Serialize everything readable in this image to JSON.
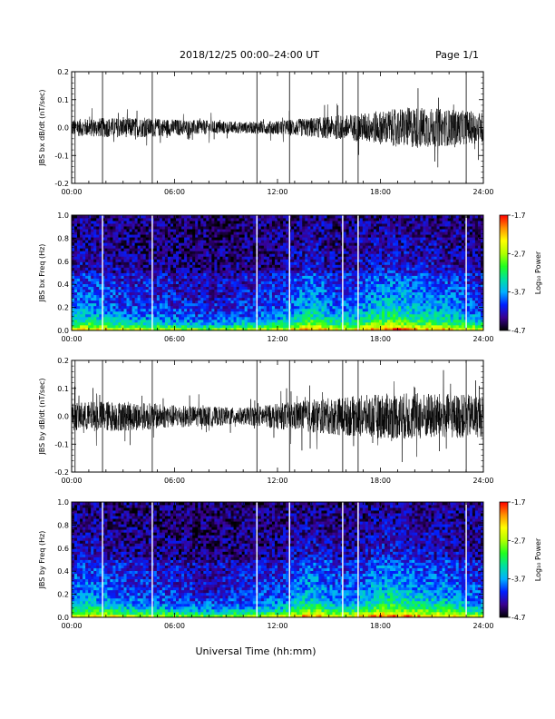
{
  "header": {
    "title": "2018/12/25  00:00–24:00 UT",
    "page": "Page 1/1"
  },
  "footer": {
    "xlabel": "Universal Time (hh:mm)"
  },
  "colorbar": {
    "label": "Log₁₀ Power",
    "ticks": [
      "-1.7",
      "-2.7",
      "-3.7",
      "-4.7"
    ],
    "range": [
      -4.7,
      -1.7
    ],
    "colors": [
      "#000000",
      "#3a0090",
      "#0020ff",
      "#00b0ff",
      "#00e0a0",
      "#20ff20",
      "#b0ff00",
      "#ffff00",
      "#ff9000",
      "#ff0000"
    ]
  },
  "x_ticks": [
    "00:00",
    "06:00",
    "12:00",
    "18:00",
    "24:00"
  ],
  "chart_data": [
    {
      "type": "line",
      "id": "bx-waveform",
      "ylabel": "JBS bx dB/dt (nT/sec)",
      "ylim": [
        -0.2,
        0.2
      ],
      "y_ticks": [
        "0.2",
        "0.1",
        "0.0",
        "-0.1",
        "-0.2"
      ],
      "x": "time 00:00–24:00 UT",
      "envelope_hours": [
        0,
        2,
        4,
        6,
        8,
        10,
        12,
        14,
        16,
        18,
        20,
        22,
        24
      ],
      "envelope_amplitude": [
        0.03,
        0.035,
        0.035,
        0.03,
        0.025,
        0.02,
        0.025,
        0.035,
        0.045,
        0.06,
        0.075,
        0.065,
        0.055
      ],
      "spike_hours": [
        0.2,
        1.8,
        4.7,
        10.8,
        12.7,
        15.8,
        16.7,
        23.0
      ]
    },
    {
      "type": "heatmap",
      "id": "bx-spectrogram",
      "ylabel": "JBS bx Freq (Hz)",
      "ylim": [
        0.0,
        1.0
      ],
      "y_ticks": [
        "1.0",
        "0.8",
        "0.6",
        "0.4",
        "0.2",
        "0.0"
      ],
      "value_range": [
        -4.7,
        -1.7
      ],
      "gap_hours": [
        1.8,
        4.7,
        10.8,
        12.7,
        15.8,
        16.7,
        23.0
      ]
    },
    {
      "type": "line",
      "id": "by-waveform",
      "ylabel": "JBS by dB/dt (nT/sec)",
      "ylim": [
        -0.2,
        0.2
      ],
      "y_ticks": [
        "0.2",
        "0.1",
        "0.0",
        "-0.1",
        "-0.2"
      ],
      "x": "time 00:00–24:00 UT",
      "envelope_hours": [
        0,
        2,
        4,
        6,
        8,
        10,
        12,
        14,
        16,
        18,
        20,
        22,
        24
      ],
      "envelope_amplitude": [
        0.05,
        0.055,
        0.05,
        0.04,
        0.035,
        0.03,
        0.045,
        0.06,
        0.07,
        0.08,
        0.085,
        0.08,
        0.075
      ],
      "spike_hours": [
        0.2,
        1.8,
        4.7,
        10.8,
        12.7,
        15.8,
        16.7,
        23.0
      ]
    },
    {
      "type": "heatmap",
      "id": "by-spectrogram",
      "ylabel": "JBS by Freq (Hz)",
      "ylim": [
        0.0,
        1.0
      ],
      "y_ticks": [
        "1.0",
        "0.8",
        "0.6",
        "0.4",
        "0.2",
        "0.0"
      ],
      "value_range": [
        -4.7,
        -1.7
      ],
      "gap_hours": [
        1.8,
        4.7,
        10.8,
        12.7,
        15.8,
        16.7,
        23.0
      ]
    }
  ]
}
